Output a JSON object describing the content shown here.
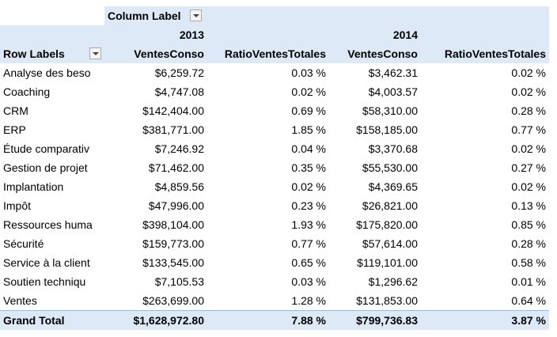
{
  "header": {
    "column_label": "Column Label",
    "years": [
      "2013",
      "2014"
    ],
    "row_labels": "Row Labels",
    "measures": [
      "VentesConso",
      "RatioVentesTotales",
      "VentesConso",
      "RatioVentesTotales"
    ]
  },
  "table": {
    "rows": [
      [
        "Analyse des beso",
        "$6,259.72",
        "0.03 %",
        "$3,462.31",
        "0.02 %"
      ],
      [
        "Coaching",
        "$4,747.08",
        "0.02 %",
        "$4,003.57",
        "0.02 %"
      ],
      [
        "CRM",
        "$142,404.00",
        "0.69 %",
        "$58,310.00",
        "0.28 %"
      ],
      [
        "ERP",
        "$381,771.00",
        "1.85 %",
        "$158,185.00",
        "0.77 %"
      ],
      [
        "Étude comparativ",
        "$7,246.92",
        "0.04 %",
        "$3,370.68",
        "0.02 %"
      ],
      [
        "Gestion de projet",
        "$71,462.00",
        "0.35 %",
        "$55,530.00",
        "0.27 %"
      ],
      [
        "Implantation",
        "$4,859.56",
        "0.02 %",
        "$4,369.65",
        "0.02 %"
      ],
      [
        "Impôt",
        "$47,996.00",
        "0.23 %",
        "$26,821.00",
        "0.13 %"
      ],
      [
        "Ressources huma",
        "$398,104.00",
        "1.93 %",
        "$175,820.00",
        "0.85 %"
      ],
      [
        "Sécurité",
        "$159,773.00",
        "0.77 %",
        "$57,614.00",
        "0.28 %"
      ],
      [
        "Service à la client",
        "$133,545.00",
        "0.65 %",
        "$119,101.00",
        "0.58 %"
      ],
      [
        "Soutien techniqu",
        "$7,105.53",
        "0.03 %",
        "$1,296.62",
        "0.01 %"
      ],
      [
        "Ventes",
        "$263,699.00",
        "1.28 %",
        "$131,853.00",
        "0.64 %"
      ]
    ],
    "grand_total": [
      "Grand Total",
      "$1,628,972.80",
      "7.88 %",
      "$799,736.83",
      "3.87 %"
    ]
  }
}
